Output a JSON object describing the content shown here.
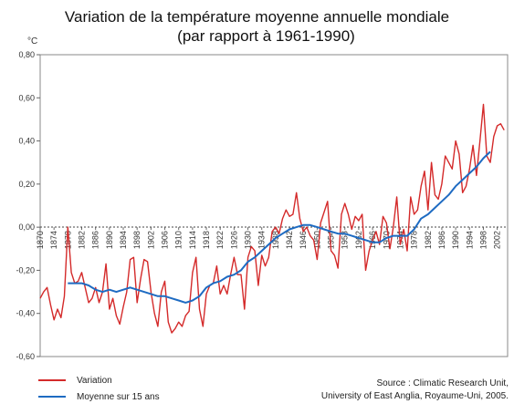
{
  "chart_data": {
    "type": "line",
    "title": "Variation de la température moyenne annuelle mondiale",
    "subtitle": "(par rapport à 1961-1990)",
    "ylabel": "°C",
    "xlabel": "",
    "xlim": [
      1870,
      2005
    ],
    "ylim": [
      -0.6,
      0.8
    ],
    "y_ticks": [
      "0,80",
      "0,60",
      "0,40",
      "0,20",
      "0,00",
      "-0,20",
      "-0,40",
      "-0,60"
    ],
    "x_ticks": [
      "1870",
      "1874",
      "1878",
      "1882",
      "1886",
      "1890",
      "1894",
      "1898",
      "1902",
      "1906",
      "1910",
      "1914",
      "1918",
      "1922",
      "1926",
      "1930",
      "1934",
      "1938",
      "1942",
      "1946",
      "1950",
      "1954",
      "1958",
      "1962",
      "1966",
      "1970",
      "1974",
      "1978",
      "1982",
      "1986",
      "1990",
      "1994",
      "1998",
      "2002"
    ],
    "grid": false,
    "legend_position": "bottom-left",
    "series": [
      {
        "name": "Variation",
        "color": "#d42a2a",
        "x": [
          1870,
          1871,
          1872,
          1873,
          1874,
          1875,
          1876,
          1877,
          1878,
          1879,
          1880,
          1881,
          1882,
          1883,
          1884,
          1885,
          1886,
          1887,
          1888,
          1889,
          1890,
          1891,
          1892,
          1893,
          1894,
          1895,
          1896,
          1897,
          1898,
          1899,
          1900,
          1901,
          1902,
          1903,
          1904,
          1905,
          1906,
          1907,
          1908,
          1909,
          1910,
          1911,
          1912,
          1913,
          1914,
          1915,
          1916,
          1917,
          1918,
          1919,
          1920,
          1921,
          1922,
          1923,
          1924,
          1925,
          1926,
          1927,
          1928,
          1929,
          1930,
          1931,
          1932,
          1933,
          1934,
          1935,
          1936,
          1937,
          1938,
          1939,
          1940,
          1941,
          1942,
          1943,
          1944,
          1945,
          1946,
          1947,
          1948,
          1949,
          1950,
          1951,
          1952,
          1953,
          1954,
          1955,
          1956,
          1957,
          1958,
          1959,
          1960,
          1961,
          1962,
          1963,
          1964,
          1965,
          1966,
          1967,
          1968,
          1969,
          1970,
          1971,
          1972,
          1973,
          1974,
          1975,
          1976,
          1977,
          1978,
          1979,
          1980,
          1981,
          1982,
          1983,
          1984,
          1985,
          1986,
          1987,
          1988,
          1989,
          1990,
          1991,
          1992,
          1993,
          1994,
          1995,
          1996,
          1997,
          1998,
          1999,
          2000,
          2001,
          2002,
          2003,
          2004
        ],
        "values": [
          -0.33,
          -0.3,
          -0.28,
          -0.36,
          -0.43,
          -0.38,
          -0.42,
          -0.32,
          0.0,
          -0.21,
          -0.26,
          -0.25,
          -0.21,
          -0.28,
          -0.35,
          -0.33,
          -0.28,
          -0.35,
          -0.3,
          -0.17,
          -0.38,
          -0.33,
          -0.41,
          -0.45,
          -0.37,
          -0.3,
          -0.15,
          -0.14,
          -0.35,
          -0.24,
          -0.15,
          -0.16,
          -0.3,
          -0.4,
          -0.46,
          -0.3,
          -0.25,
          -0.44,
          -0.49,
          -0.47,
          -0.44,
          -0.46,
          -0.41,
          -0.39,
          -0.21,
          -0.14,
          -0.38,
          -0.46,
          -0.31,
          -0.27,
          -0.26,
          -0.18,
          -0.31,
          -0.27,
          -0.31,
          -0.22,
          -0.14,
          -0.22,
          -0.22,
          -0.38,
          -0.14,
          -0.09,
          -0.11,
          -0.27,
          -0.13,
          -0.18,
          -0.14,
          -0.02,
          0.0,
          -0.03,
          0.04,
          0.08,
          0.05,
          0.06,
          0.16,
          0.04,
          -0.02,
          0.0,
          -0.04,
          -0.06,
          -0.15,
          0.02,
          0.07,
          0.12,
          -0.11,
          -0.13,
          -0.19,
          0.06,
          0.11,
          0.06,
          -0.01,
          0.05,
          0.03,
          0.06,
          -0.2,
          -0.11,
          -0.06,
          -0.02,
          -0.08,
          0.05,
          0.02,
          -0.1,
          0.0,
          0.14,
          -0.08,
          -0.01,
          -0.11,
          0.14,
          0.06,
          0.08,
          0.19,
          0.26,
          0.08,
          0.3,
          0.15,
          0.13,
          0.2,
          0.33,
          0.3,
          0.27,
          0.4,
          0.34,
          0.16,
          0.19,
          0.27,
          0.38,
          0.24,
          0.4,
          0.57,
          0.33,
          0.3,
          0.42,
          0.47,
          0.48,
          0.45
        ]
      },
      {
        "name": "Moyenne sur 15 ans",
        "color": "#1e6bc2",
        "x": [
          1878,
          1880,
          1882,
          1884,
          1886,
          1888,
          1890,
          1892,
          1894,
          1896,
          1898,
          1900,
          1902,
          1904,
          1906,
          1908,
          1910,
          1912,
          1914,
          1916,
          1918,
          1920,
          1922,
          1924,
          1926,
          1928,
          1930,
          1932,
          1934,
          1936,
          1938,
          1940,
          1942,
          1944,
          1946,
          1948,
          1950,
          1952,
          1954,
          1956,
          1958,
          1960,
          1962,
          1964,
          1966,
          1968,
          1970,
          1972,
          1974,
          1976,
          1978,
          1980,
          1982,
          1984,
          1986,
          1988,
          1990,
          1992,
          1994,
          1996,
          1998,
          2000
        ],
        "values": [
          -0.26,
          -0.26,
          -0.26,
          -0.27,
          -0.29,
          -0.3,
          -0.29,
          -0.3,
          -0.29,
          -0.28,
          -0.29,
          -0.3,
          -0.31,
          -0.32,
          -0.32,
          -0.33,
          -0.34,
          -0.35,
          -0.34,
          -0.32,
          -0.28,
          -0.26,
          -0.25,
          -0.23,
          -0.22,
          -0.2,
          -0.16,
          -0.14,
          -0.11,
          -0.08,
          -0.05,
          -0.03,
          -0.01,
          0.0,
          0.01,
          0.01,
          0.0,
          -0.01,
          -0.02,
          -0.03,
          -0.03,
          -0.04,
          -0.05,
          -0.06,
          -0.07,
          -0.07,
          -0.05,
          -0.04,
          -0.04,
          -0.04,
          -0.01,
          0.04,
          0.06,
          0.09,
          0.12,
          0.15,
          0.19,
          0.22,
          0.25,
          0.28,
          0.32,
          0.35
        ]
      }
    ]
  },
  "legend": {
    "variation_label": "Variation",
    "moyenne_label": "Moyenne sur 15 ans"
  },
  "source": {
    "line1": "Source : Climatic Research Unit,",
    "line2": "University of East Anglia, Royaume-Uni, 2005."
  }
}
